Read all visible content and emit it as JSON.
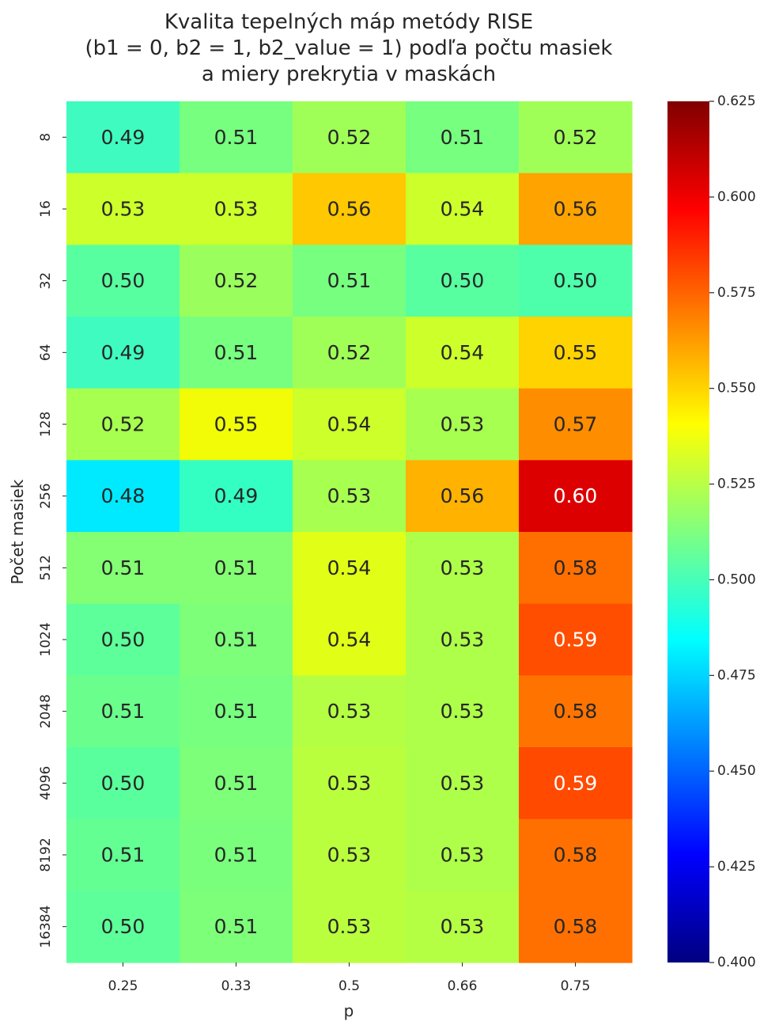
{
  "chart_data": {
    "type": "heatmap",
    "title_lines": [
      "Kvalita tepelných máp metódy RISE",
      "(b1 = 0, b2 = 1, b2_value = 1) podľa počtu masiek",
      "a miery prekrytia v maskách"
    ],
    "xlabel": "p",
    "ylabel": "Počet masiek",
    "x_categories": [
      "0.25",
      "0.33",
      "0.5",
      "0.66",
      "0.75"
    ],
    "y_categories": [
      "8",
      "16",
      "32",
      "64",
      "128",
      "256",
      "512",
      "1024",
      "2048",
      "4096",
      "8192",
      "16384"
    ],
    "values": [
      [
        0.49,
        0.51,
        0.52,
        0.51,
        0.52
      ],
      [
        0.53,
        0.53,
        0.56,
        0.54,
        0.56
      ],
      [
        0.5,
        0.52,
        0.51,
        0.5,
        0.5
      ],
      [
        0.49,
        0.51,
        0.52,
        0.54,
        0.55
      ],
      [
        0.52,
        0.55,
        0.54,
        0.53,
        0.57
      ],
      [
        0.48,
        0.49,
        0.53,
        0.56,
        0.6
      ],
      [
        0.51,
        0.51,
        0.54,
        0.53,
        0.58
      ],
      [
        0.5,
        0.51,
        0.54,
        0.53,
        0.59
      ],
      [
        0.51,
        0.51,
        0.53,
        0.53,
        0.58
      ],
      [
        0.5,
        0.51,
        0.53,
        0.53,
        0.59
      ],
      [
        0.51,
        0.51,
        0.53,
        0.53,
        0.58
      ],
      [
        0.5,
        0.51,
        0.53,
        0.53,
        0.58
      ]
    ],
    "value_labels": [
      [
        "0.49",
        "0.51",
        "0.52",
        "0.51",
        "0.52"
      ],
      [
        "0.53",
        "0.53",
        "0.56",
        "0.54",
        "0.56"
      ],
      [
        "0.50",
        "0.52",
        "0.51",
        "0.50",
        "0.50"
      ],
      [
        "0.49",
        "0.51",
        "0.52",
        "0.54",
        "0.55"
      ],
      [
        "0.52",
        "0.55",
        "0.54",
        "0.53",
        "0.57"
      ],
      [
        "0.48",
        "0.49",
        "0.53",
        "0.56",
        "0.60"
      ],
      [
        "0.51",
        "0.51",
        "0.54",
        "0.53",
        "0.58"
      ],
      [
        "0.50",
        "0.51",
        "0.54",
        "0.53",
        "0.59"
      ],
      [
        "0.51",
        "0.51",
        "0.53",
        "0.53",
        "0.58"
      ],
      [
        "0.50",
        "0.51",
        "0.53",
        "0.53",
        "0.59"
      ],
      [
        "0.51",
        "0.51",
        "0.53",
        "0.53",
        "0.58"
      ],
      [
        "0.50",
        "0.51",
        "0.53",
        "0.53",
        "0.58"
      ]
    ],
    "cell_colors": [
      [
        "#3ffbbf",
        "#77ff80",
        "#a0ff57",
        "#77ff80",
        "#a0ff57"
      ],
      [
        "#cdff2a",
        "#cdff2a",
        "#ffc800",
        "#cdff2a",
        "#ffa300"
      ],
      [
        "#57ffa0",
        "#9aff5d",
        "#77ff80",
        "#57ffa0",
        "#4dffaa"
      ],
      [
        "#3ffbbf",
        "#77ff80",
        "#a0ff57",
        "#cdff2a",
        "#ffd300"
      ],
      [
        "#a7ff50",
        "#f1fc06",
        "#cdff2a",
        "#a7ff50",
        "#ff8d00"
      ],
      [
        "#00eaff",
        "#33ffc3",
        "#a7ff50",
        "#ffb200",
        "#dd0000"
      ],
      [
        "#84ff73",
        "#84ff73",
        "#e1ff16",
        "#aeff49",
        "#ff6f00"
      ],
      [
        "#5dff9a",
        "#7dff7a",
        "#e1ff16",
        "#aeff49",
        "#ff4e00"
      ],
      [
        "#6aff8d",
        "#77ff80",
        "#b4ff43",
        "#aeff49",
        "#ff7400"
      ],
      [
        "#5aff9d",
        "#7dff7a",
        "#baff3d",
        "#aeff49",
        "#ff4a00"
      ],
      [
        "#64ff93",
        "#7aff7d",
        "#baff3d",
        "#aeff49",
        "#ff7000"
      ],
      [
        "#5dff9a",
        "#7dff7a",
        "#baff3d",
        "#b4ff43",
        "#ff7000"
      ]
    ],
    "colorbar": {
      "colormap": "jet",
      "range": [
        0.4,
        0.625
      ],
      "ticks": [
        0.4,
        0.425,
        0.45,
        0.475,
        0.5,
        0.525,
        0.55,
        0.575,
        0.6,
        0.625
      ],
      "tick_labels": [
        "0.400",
        "0.425",
        "0.450",
        "0.475",
        "0.500",
        "0.525",
        "0.550",
        "0.575",
        "0.600",
        "0.625"
      ]
    },
    "grid": false,
    "legend": "none"
  }
}
